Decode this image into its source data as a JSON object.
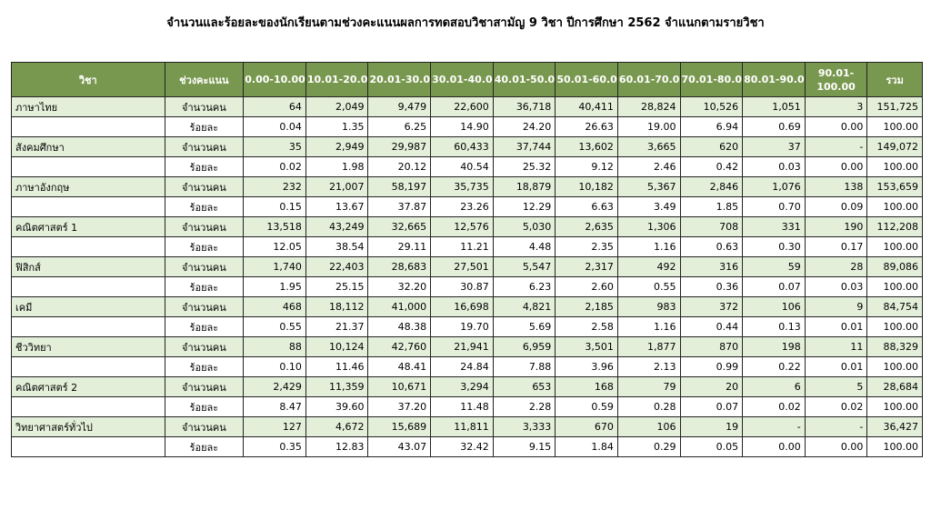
{
  "title": "จำนวนและร้อยละของนักเรียนตามช่วงคะแนนผลการทดสอบวิชาสามัญ 9 วิชา ปีการศึกษา 2562 จำแนกตามรายวิชา",
  "headers": [
    "วิชา",
    "ช่วงคะแนน",
    "0.00-10.00",
    "10.01-20.00",
    "20.01-30.00",
    "30.01-40.00",
    "40.01-50.00",
    "50.01-60.00",
    "60.01-70.00",
    "70.01-80.00",
    "80.01-90.00",
    "90.01-100.00",
    "รวม"
  ],
  "count_label": "จำนวนคน",
  "pct_label": "ร้อยละ",
  "rows": [
    {
      "subject": "ภาษาไทย",
      "count": [
        "64",
        "2,049",
        "9,479",
        "22,600",
        "36,718",
        "40,411",
        "28,824",
        "10,526",
        "1,051",
        "3",
        "151,725"
      ],
      "pct": [
        "0.04",
        "1.35",
        "6.25",
        "14.90",
        "24.20",
        "26.63",
        "19.00",
        "6.94",
        "0.69",
        "0.00",
        "100.00"
      ]
    },
    {
      "subject": "สังคมศึกษา",
      "count": [
        "35",
        "2,949",
        "29,987",
        "60,433",
        "37,744",
        "13,602",
        "3,665",
        "620",
        "37",
        "-",
        "149,072"
      ],
      "pct": [
        "0.02",
        "1.98",
        "20.12",
        "40.54",
        "25.32",
        "9.12",
        "2.46",
        "0.42",
        "0.03",
        "0.00",
        "100.00"
      ]
    },
    {
      "subject": "ภาษาอังกฤษ",
      "count": [
        "232",
        "21,007",
        "58,197",
        "35,735",
        "18,879",
        "10,182",
        "5,367",
        "2,846",
        "1,076",
        "138",
        "153,659"
      ],
      "pct": [
        "0.15",
        "13.67",
        "37.87",
        "23.26",
        "12.29",
        "6.63",
        "3.49",
        "1.85",
        "0.70",
        "0.09",
        "100.00"
      ]
    },
    {
      "subject": "คณิตศาสตร์ 1",
      "count": [
        "13,518",
        "43,249",
        "32,665",
        "12,576",
        "5,030",
        "2,635",
        "1,306",
        "708",
        "331",
        "190",
        "112,208"
      ],
      "pct": [
        "12.05",
        "38.54",
        "29.11",
        "11.21",
        "4.48",
        "2.35",
        "1.16",
        "0.63",
        "0.30",
        "0.17",
        "100.00"
      ]
    },
    {
      "subject": "ฟิสิกส์",
      "count": [
        "1,740",
        "22,403",
        "28,683",
        "27,501",
        "5,547",
        "2,317",
        "492",
        "316",
        "59",
        "28",
        "89,086"
      ],
      "pct": [
        "1.95",
        "25.15",
        "32.20",
        "30.87",
        "6.23",
        "2.60",
        "0.55",
        "0.36",
        "0.07",
        "0.03",
        "100.00"
      ]
    },
    {
      "subject": "เคมี",
      "count": [
        "468",
        "18,112",
        "41,000",
        "16,698",
        "4,821",
        "2,185",
        "983",
        "372",
        "106",
        "9",
        "84,754"
      ],
      "pct": [
        "0.55",
        "21.37",
        "48.38",
        "19.70",
        "5.69",
        "2.58",
        "1.16",
        "0.44",
        "0.13",
        "0.01",
        "100.00"
      ]
    },
    {
      "subject": "ชีววิทยา",
      "count": [
        "88",
        "10,124",
        "42,760",
        "21,941",
        "6,959",
        "3,501",
        "1,877",
        "870",
        "198",
        "11",
        "88,329"
      ],
      "pct": [
        "0.10",
        "11.46",
        "48.41",
        "24.84",
        "7.88",
        "3.96",
        "2.13",
        "0.99",
        "0.22",
        "0.01",
        "100.00"
      ]
    },
    {
      "subject": "คณิตศาสตร์ 2",
      "count": [
        "2,429",
        "11,359",
        "10,671",
        "3,294",
        "653",
        "168",
        "79",
        "20",
        "6",
        "5",
        "28,684"
      ],
      "pct": [
        "8.47",
        "39.60",
        "37.20",
        "11.48",
        "2.28",
        "0.59",
        "0.28",
        "0.07",
        "0.02",
        "0.02",
        "100.00"
      ]
    },
    {
      "subject": "วิทยาศาสตร์ทั่วไป",
      "count": [
        "127",
        "4,672",
        "15,689",
        "11,811",
        "3,333",
        "670",
        "106",
        "19",
        "-",
        "-",
        "36,427"
      ],
      "pct": [
        "0.35",
        "12.83",
        "43.07",
        "32.42",
        "9.15",
        "1.84",
        "0.29",
        "0.05",
        "0.00",
        "0.00",
        "100.00"
      ]
    }
  ]
}
